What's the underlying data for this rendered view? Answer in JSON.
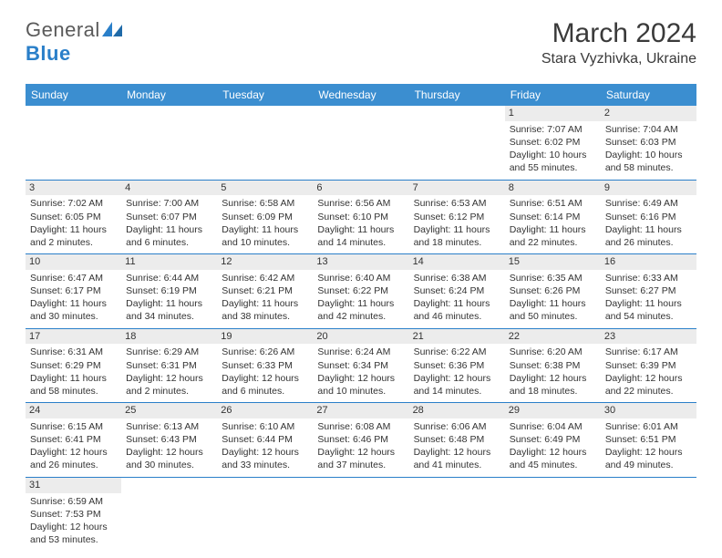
{
  "logo": {
    "text1": "General",
    "text2": "Blue"
  },
  "title": {
    "month_year": "March 2024",
    "location": "Stara Vyzhivka, Ukraine"
  },
  "colors": {
    "header_bg": "#3b8ed0",
    "header_text": "#ffffff",
    "daynum_bg": "#ececec",
    "divider": "#2a7fc9"
  },
  "day_headers": [
    "Sunday",
    "Monday",
    "Tuesday",
    "Wednesday",
    "Thursday",
    "Friday",
    "Saturday"
  ],
  "weeks": [
    [
      null,
      null,
      null,
      null,
      null,
      {
        "n": "1",
        "sr": "Sunrise: 7:07 AM",
        "ss": "Sunset: 6:02 PM",
        "dl": "Daylight: 10 hours and 55 minutes."
      },
      {
        "n": "2",
        "sr": "Sunrise: 7:04 AM",
        "ss": "Sunset: 6:03 PM",
        "dl": "Daylight: 10 hours and 58 minutes."
      }
    ],
    [
      {
        "n": "3",
        "sr": "Sunrise: 7:02 AM",
        "ss": "Sunset: 6:05 PM",
        "dl": "Daylight: 11 hours and 2 minutes."
      },
      {
        "n": "4",
        "sr": "Sunrise: 7:00 AM",
        "ss": "Sunset: 6:07 PM",
        "dl": "Daylight: 11 hours and 6 minutes."
      },
      {
        "n": "5",
        "sr": "Sunrise: 6:58 AM",
        "ss": "Sunset: 6:09 PM",
        "dl": "Daylight: 11 hours and 10 minutes."
      },
      {
        "n": "6",
        "sr": "Sunrise: 6:56 AM",
        "ss": "Sunset: 6:10 PM",
        "dl": "Daylight: 11 hours and 14 minutes."
      },
      {
        "n": "7",
        "sr": "Sunrise: 6:53 AM",
        "ss": "Sunset: 6:12 PM",
        "dl": "Daylight: 11 hours and 18 minutes."
      },
      {
        "n": "8",
        "sr": "Sunrise: 6:51 AM",
        "ss": "Sunset: 6:14 PM",
        "dl": "Daylight: 11 hours and 22 minutes."
      },
      {
        "n": "9",
        "sr": "Sunrise: 6:49 AM",
        "ss": "Sunset: 6:16 PM",
        "dl": "Daylight: 11 hours and 26 minutes."
      }
    ],
    [
      {
        "n": "10",
        "sr": "Sunrise: 6:47 AM",
        "ss": "Sunset: 6:17 PM",
        "dl": "Daylight: 11 hours and 30 minutes."
      },
      {
        "n": "11",
        "sr": "Sunrise: 6:44 AM",
        "ss": "Sunset: 6:19 PM",
        "dl": "Daylight: 11 hours and 34 minutes."
      },
      {
        "n": "12",
        "sr": "Sunrise: 6:42 AM",
        "ss": "Sunset: 6:21 PM",
        "dl": "Daylight: 11 hours and 38 minutes."
      },
      {
        "n": "13",
        "sr": "Sunrise: 6:40 AM",
        "ss": "Sunset: 6:22 PM",
        "dl": "Daylight: 11 hours and 42 minutes."
      },
      {
        "n": "14",
        "sr": "Sunrise: 6:38 AM",
        "ss": "Sunset: 6:24 PM",
        "dl": "Daylight: 11 hours and 46 minutes."
      },
      {
        "n": "15",
        "sr": "Sunrise: 6:35 AM",
        "ss": "Sunset: 6:26 PM",
        "dl": "Daylight: 11 hours and 50 minutes."
      },
      {
        "n": "16",
        "sr": "Sunrise: 6:33 AM",
        "ss": "Sunset: 6:27 PM",
        "dl": "Daylight: 11 hours and 54 minutes."
      }
    ],
    [
      {
        "n": "17",
        "sr": "Sunrise: 6:31 AM",
        "ss": "Sunset: 6:29 PM",
        "dl": "Daylight: 11 hours and 58 minutes."
      },
      {
        "n": "18",
        "sr": "Sunrise: 6:29 AM",
        "ss": "Sunset: 6:31 PM",
        "dl": "Daylight: 12 hours and 2 minutes."
      },
      {
        "n": "19",
        "sr": "Sunrise: 6:26 AM",
        "ss": "Sunset: 6:33 PM",
        "dl": "Daylight: 12 hours and 6 minutes."
      },
      {
        "n": "20",
        "sr": "Sunrise: 6:24 AM",
        "ss": "Sunset: 6:34 PM",
        "dl": "Daylight: 12 hours and 10 minutes."
      },
      {
        "n": "21",
        "sr": "Sunrise: 6:22 AM",
        "ss": "Sunset: 6:36 PM",
        "dl": "Daylight: 12 hours and 14 minutes."
      },
      {
        "n": "22",
        "sr": "Sunrise: 6:20 AM",
        "ss": "Sunset: 6:38 PM",
        "dl": "Daylight: 12 hours and 18 minutes."
      },
      {
        "n": "23",
        "sr": "Sunrise: 6:17 AM",
        "ss": "Sunset: 6:39 PM",
        "dl": "Daylight: 12 hours and 22 minutes."
      }
    ],
    [
      {
        "n": "24",
        "sr": "Sunrise: 6:15 AM",
        "ss": "Sunset: 6:41 PM",
        "dl": "Daylight: 12 hours and 26 minutes."
      },
      {
        "n": "25",
        "sr": "Sunrise: 6:13 AM",
        "ss": "Sunset: 6:43 PM",
        "dl": "Daylight: 12 hours and 30 minutes."
      },
      {
        "n": "26",
        "sr": "Sunrise: 6:10 AM",
        "ss": "Sunset: 6:44 PM",
        "dl": "Daylight: 12 hours and 33 minutes."
      },
      {
        "n": "27",
        "sr": "Sunrise: 6:08 AM",
        "ss": "Sunset: 6:46 PM",
        "dl": "Daylight: 12 hours and 37 minutes."
      },
      {
        "n": "28",
        "sr": "Sunrise: 6:06 AM",
        "ss": "Sunset: 6:48 PM",
        "dl": "Daylight: 12 hours and 41 minutes."
      },
      {
        "n": "29",
        "sr": "Sunrise: 6:04 AM",
        "ss": "Sunset: 6:49 PM",
        "dl": "Daylight: 12 hours and 45 minutes."
      },
      {
        "n": "30",
        "sr": "Sunrise: 6:01 AM",
        "ss": "Sunset: 6:51 PM",
        "dl": "Daylight: 12 hours and 49 minutes."
      }
    ],
    [
      {
        "n": "31",
        "sr": "Sunrise: 6:59 AM",
        "ss": "Sunset: 7:53 PM",
        "dl": "Daylight: 12 hours and 53 minutes."
      },
      null,
      null,
      null,
      null,
      null,
      null
    ]
  ]
}
